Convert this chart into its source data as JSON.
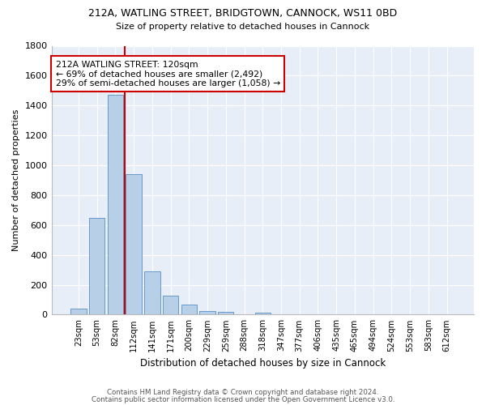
{
  "title1": "212A, WATLING STREET, BRIDGTOWN, CANNOCK, WS11 0BD",
  "title2": "Size of property relative to detached houses in Cannock",
  "xlabel": "Distribution of detached houses by size in Cannock",
  "ylabel": "Number of detached properties",
  "categories": [
    "23sqm",
    "53sqm",
    "82sqm",
    "112sqm",
    "141sqm",
    "171sqm",
    "200sqm",
    "229sqm",
    "259sqm",
    "288sqm",
    "318sqm",
    "347sqm",
    "377sqm",
    "406sqm",
    "435sqm",
    "465sqm",
    "494sqm",
    "524sqm",
    "553sqm",
    "583sqm",
    "612sqm"
  ],
  "values": [
    40,
    650,
    1470,
    940,
    290,
    125,
    65,
    22,
    18,
    0,
    15,
    0,
    0,
    0,
    0,
    0,
    0,
    0,
    0,
    0,
    0
  ],
  "bar_color": "#b8cfe8",
  "bar_edge_color": "#6699cc",
  "vline_color": "#cc0000",
  "annotation_text": "212A WATLING STREET: 120sqm\n← 69% of detached houses are smaller (2,492)\n29% of semi-detached houses are larger (1,058) →",
  "annotation_box_color": "#cc0000",
  "ylim": [
    0,
    1800
  ],
  "yticks": [
    0,
    200,
    400,
    600,
    800,
    1000,
    1200,
    1400,
    1600,
    1800
  ],
  "bg_color": "#e8eef8",
  "footer1": "Contains HM Land Registry data © Crown copyright and database right 2024.",
  "footer2": "Contains public sector information licensed under the Open Government Licence v3.0."
}
